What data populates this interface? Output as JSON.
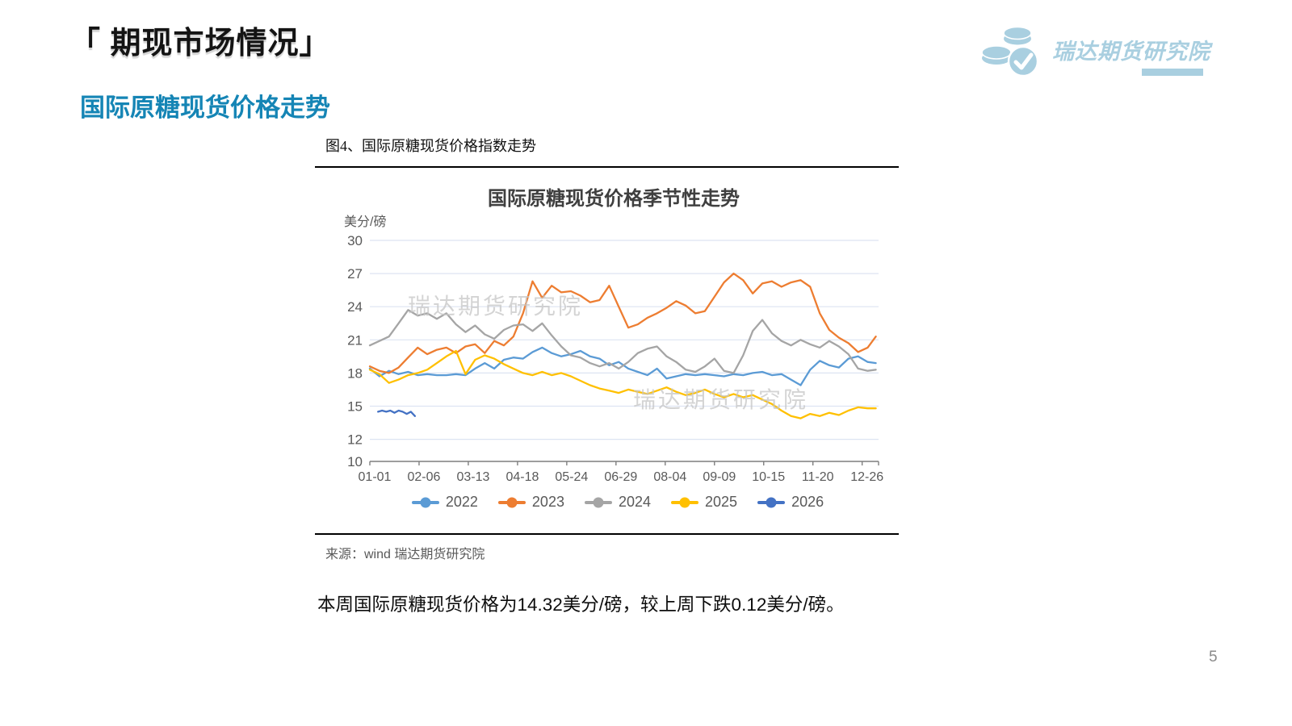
{
  "header": {
    "title": "「 期现市场情况」",
    "section_title": "国际原糖现货价格走势"
  },
  "brand": {
    "name": "瑞达期货研究院",
    "color": "#a9cfe0"
  },
  "figure": {
    "caption": "图4、国际原糖现货价格指数走势",
    "source": "来源：wind    瑞达期货研究院"
  },
  "chart_data": {
    "type": "line",
    "title": "国际原糖现货价格季节性走势",
    "unit_label": "美分/磅",
    "watermark": "瑞达期货研究院",
    "ylim": [
      10,
      30
    ],
    "yticks": [
      10,
      12,
      15,
      18,
      21,
      24,
      27,
      30
    ],
    "x_range_days": [
      0,
      372
    ],
    "x_tick_days": [
      0,
      36,
      72,
      108,
      144,
      180,
      216,
      252,
      288,
      324,
      360
    ],
    "x_tick_labels": [
      "01-01",
      "02-06",
      "03-13",
      "04-18",
      "05-24",
      "06-29",
      "08-04",
      "09-09",
      "10-15",
      "11-20",
      "12-26"
    ],
    "grid": true,
    "legend_position": "bottom",
    "grid_color": "#dde4f2",
    "axis_color": "#7f7f7f",
    "days": [
      0,
      7,
      14,
      21,
      28,
      35,
      42,
      49,
      56,
      63,
      70,
      77,
      84,
      91,
      98,
      105,
      112,
      119,
      126,
      133,
      140,
      147,
      154,
      161,
      168,
      175,
      182,
      189,
      196,
      203,
      210,
      217,
      224,
      231,
      238,
      245,
      252,
      259,
      266,
      273,
      280,
      287,
      294,
      301,
      308,
      315,
      322,
      329,
      336,
      343,
      350,
      357,
      364,
      370
    ],
    "series": [
      {
        "name": "2022",
        "color": "#5B9BD5",
        "values": [
          18.4,
          17.7,
          18.2,
          17.9,
          18.1,
          17.8,
          17.9,
          17.8,
          17.8,
          17.9,
          17.8,
          18.4,
          18.9,
          18.4,
          19.2,
          19.4,
          19.3,
          19.9,
          20.3,
          19.8,
          19.5,
          19.7,
          20.0,
          19.5,
          19.3,
          18.7,
          19.0,
          18.4,
          18.1,
          17.8,
          18.4,
          17.5,
          17.7,
          17.9,
          17.8,
          17.9,
          17.8,
          17.7,
          17.9,
          17.8,
          18.0,
          18.1,
          17.8,
          17.9,
          17.4,
          16.9,
          18.3,
          19.1,
          18.7,
          18.5,
          19.3,
          19.5,
          19.0,
          18.9
        ]
      },
      {
        "name": "2023",
        "color": "#ED7D31",
        "values": [
          18.6,
          18.2,
          18.0,
          18.5,
          19.4,
          20.3,
          19.7,
          20.1,
          20.3,
          19.8,
          20.4,
          20.6,
          19.8,
          20.9,
          20.5,
          21.3,
          23.4,
          26.3,
          24.8,
          25.9,
          25.3,
          25.4,
          25.0,
          24.4,
          24.6,
          25.9,
          24.0,
          22.1,
          22.4,
          23.0,
          23.4,
          23.9,
          24.5,
          24.1,
          23.4,
          23.6,
          24.9,
          26.2,
          27.0,
          26.4,
          25.2,
          26.1,
          26.3,
          25.8,
          26.2,
          26.4,
          25.8,
          23.4,
          21.9,
          21.2,
          20.7,
          19.9,
          20.3,
          21.3
        ]
      },
      {
        "name": "2024",
        "color": "#A5A5A5",
        "values": [
          20.5,
          20.9,
          21.3,
          22.5,
          23.7,
          23.2,
          23.4,
          22.9,
          23.4,
          22.4,
          21.7,
          22.3,
          21.5,
          21.1,
          21.9,
          22.3,
          22.4,
          21.8,
          22.5,
          21.4,
          20.4,
          19.6,
          19.4,
          18.9,
          18.6,
          18.9,
          18.4,
          19.0,
          19.8,
          20.2,
          20.4,
          19.5,
          19.0,
          18.3,
          18.1,
          18.6,
          19.3,
          18.2,
          18.0,
          19.6,
          21.8,
          22.8,
          21.6,
          20.9,
          20.5,
          21.0,
          20.6,
          20.3,
          20.9,
          20.4,
          19.7,
          18.4,
          18.2,
          18.3
        ]
      },
      {
        "name": "2025",
        "color": "#FFC000",
        "values": [
          18.3,
          17.9,
          17.1,
          17.4,
          17.8,
          18.0,
          18.3,
          18.9,
          19.5,
          20.0,
          17.9,
          19.2,
          19.6,
          19.3,
          18.8,
          18.4,
          18.0,
          17.8,
          18.1,
          17.8,
          18.0,
          17.7,
          17.3,
          16.9,
          16.6,
          16.4,
          16.2,
          16.5,
          16.3,
          16.1,
          16.4,
          16.7,
          16.3,
          16.0,
          16.2,
          16.5,
          16.1,
          15.8,
          16.1,
          15.8,
          16.0,
          15.6,
          15.2,
          14.6,
          14.1,
          13.9,
          14.3,
          14.1,
          14.4,
          14.2,
          14.6,
          14.9,
          14.8,
          14.8
        ]
      },
      {
        "name": "2026",
        "color": "#4472C4",
        "days": [
          6,
          9,
          12,
          15,
          18,
          21,
          24,
          27,
          30,
          33
        ],
        "values": [
          14.5,
          14.6,
          14.5,
          14.6,
          14.4,
          14.6,
          14.5,
          14.3,
          14.5,
          14.1
        ]
      }
    ]
  },
  "summary": {
    "text": "本周国际原糖现货价格为14.32美分/磅，较上周下跌0.12美分/磅。"
  },
  "footer": {
    "page_number": "5"
  }
}
